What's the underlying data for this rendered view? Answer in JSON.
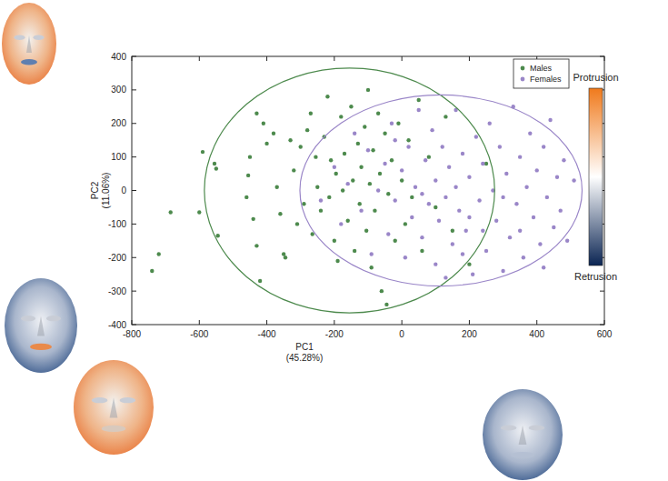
{
  "chart_data": {
    "type": "scatter",
    "xlabel": [
      "PC1",
      "(45.28%)"
    ],
    "ylabel": [
      "PC2",
      "(11.06%)"
    ],
    "xlim": [
      -800,
      600
    ],
    "ylim": [
      -400,
      400
    ],
    "xticks": [
      -800,
      -600,
      -400,
      -200,
      0,
      200,
      400,
      600
    ],
    "yticks": [
      -400,
      -300,
      -200,
      -100,
      0,
      100,
      200,
      300,
      400
    ],
    "grid": false,
    "legend": "upper right",
    "colorbar": {
      "labels": [
        "Protrusion",
        "Retrusion"
      ]
    },
    "series": [
      {
        "name": "Males",
        "color": "#4d8a4d",
        "marker": "circle",
        "x": [
          -740,
          -720,
          -685,
          -600,
          -590,
          -555,
          -550,
          -545,
          -460,
          -455,
          -450,
          -440,
          -430,
          -430,
          -420,
          -410,
          -400,
          -380,
          -370,
          -360,
          -350,
          -345,
          -330,
          -320,
          -310,
          -300,
          -290,
          -280,
          -270,
          -265,
          -255,
          -250,
          -240,
          -230,
          -220,
          -215,
          -210,
          -200,
          -195,
          -190,
          -180,
          -175,
          -170,
          -160,
          -150,
          -145,
          -140,
          -130,
          -125,
          -120,
          -110,
          -105,
          -100,
          -95,
          -90,
          -85,
          -80,
          -70,
          -65,
          -60,
          -50,
          -45,
          -40,
          -30,
          -20,
          -10,
          0,
          10,
          20,
          30,
          50,
          60,
          80,
          100,
          130,
          150,
          200,
          250
        ],
        "y": [
          -240,
          -190,
          -65,
          -65,
          115,
          80,
          65,
          -135,
          -20,
          45,
          100,
          -85,
          230,
          -165,
          -270,
          200,
          140,
          170,
          10,
          -70,
          -190,
          -200,
          150,
          60,
          -100,
          130,
          -40,
          180,
          230,
          -130,
          100,
          10,
          -60,
          160,
          280,
          -20,
          90,
          -150,
          50,
          -210,
          220,
          0,
          110,
          -90,
          250,
          30,
          -180,
          140,
          -40,
          70,
          190,
          -120,
          300,
          20,
          -230,
          120,
          -60,
          230,
          50,
          -300,
          170,
          -340,
          -10,
          90,
          -150,
          200,
          30,
          -100,
          150,
          -20,
          270,
          -180,
          100,
          -50,
          220,
          -120,
          -220,
          80
        ],
        "ellipse": {
          "cx": -155,
          "cy": 0,
          "rx": 430,
          "ry": 365
        }
      },
      {
        "name": "Females",
        "color": "#9a86c8",
        "marker": "circle",
        "x": [
          -240,
          -200,
          -180,
          -160,
          -140,
          -120,
          -100,
          -90,
          -70,
          -50,
          -40,
          -30,
          -20,
          0,
          10,
          20,
          30,
          40,
          50,
          60,
          70,
          80,
          90,
          100,
          100,
          110,
          120,
          130,
          140,
          150,
          160,
          160,
          170,
          180,
          190,
          200,
          210,
          220,
          230,
          240,
          250,
          260,
          270,
          280,
          290,
          300,
          310,
          320,
          330,
          340,
          350,
          360,
          370,
          380,
          390,
          400,
          410,
          420,
          430,
          440,
          450,
          460,
          470,
          480,
          490,
          510,
          -20,
          60,
          200,
          130,
          300,
          240,
          180,
          350,
          420
        ],
        "y": [
          -30,
          70,
          -100,
          20,
          170,
          -60,
          120,
          -190,
          0,
          80,
          -130,
          200,
          -30,
          60,
          -200,
          130,
          -80,
          10,
          240,
          -140,
          90,
          -40,
          180,
          -220,
          30,
          -90,
          130,
          -20,
          70,
          -160,
          240,
          10,
          -60,
          110,
          -120,
          40,
          -250,
          160,
          -30,
          80,
          -180,
          200,
          0,
          -90,
          130,
          -240,
          50,
          -140,
          250,
          -40,
          100,
          -200,
          10,
          170,
          -80,
          60,
          -160,
          130,
          -20,
          210,
          -110,
          40,
          -60,
          90,
          -150,
          30,
          150,
          -10,
          -80,
          -260,
          -20,
          -120,
          -190,
          -120,
          -230
        ],
        "ellipse": {
          "cx": 116,
          "cy": 0,
          "rx": 418,
          "ry": 285
        }
      }
    ]
  }
}
